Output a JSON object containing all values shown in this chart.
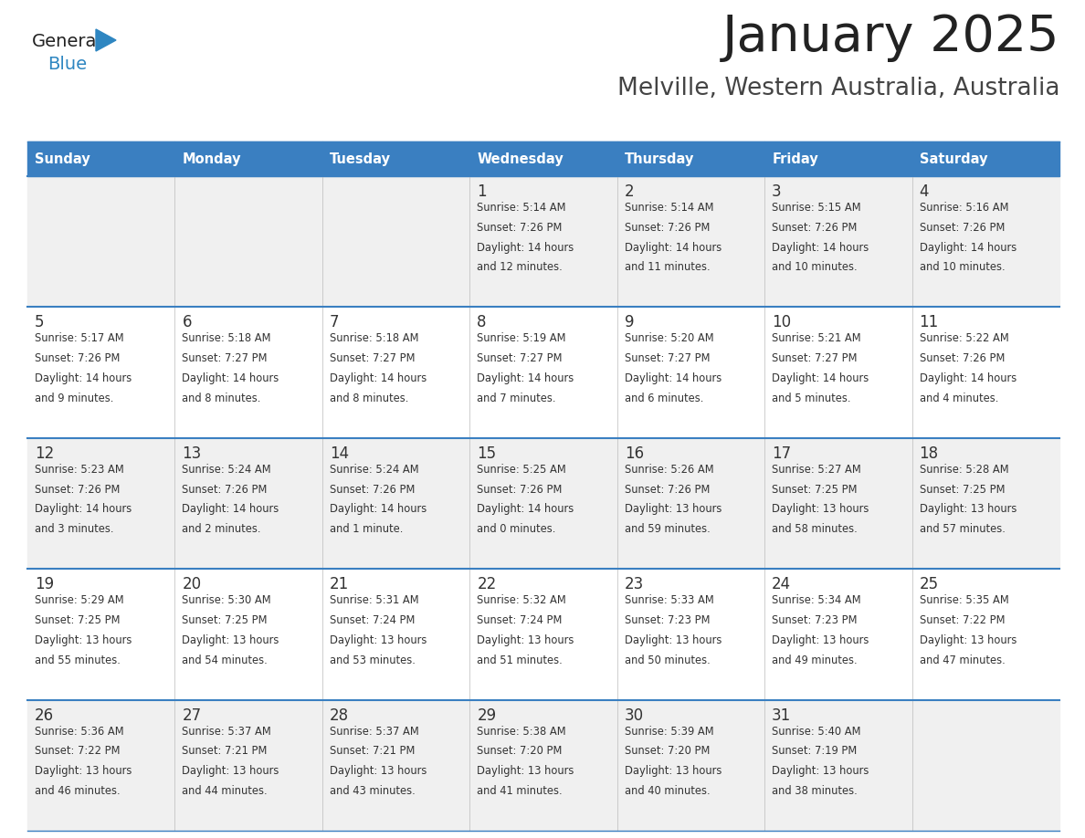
{
  "title": "January 2025",
  "subtitle": "Melville, Western Australia, Australia",
  "header_bg": "#3A7FC1",
  "header_text": "#FFFFFF",
  "row_bg_odd": "#F0F0F0",
  "row_bg_even": "#FFFFFF",
  "border_color": "#3A7FC1",
  "days_of_week": [
    "Sunday",
    "Monday",
    "Tuesday",
    "Wednesday",
    "Thursday",
    "Friday",
    "Saturday"
  ],
  "cell_text_color": "#333333",
  "day_num_color": "#333333",
  "title_color": "#222222",
  "subtitle_color": "#444444",
  "logo_general_color": "#222222",
  "logo_blue_color": "#2E86C1",
  "logo_triangle_color": "#2E86C1",
  "calendar": [
    [
      null,
      null,
      null,
      {
        "day": 1,
        "sunrise": "5:14 AM",
        "sunset": "7:26 PM",
        "daylight": "14 hours and 12 minutes."
      },
      {
        "day": 2,
        "sunrise": "5:14 AM",
        "sunset": "7:26 PM",
        "daylight": "14 hours and 11 minutes."
      },
      {
        "day": 3,
        "sunrise": "5:15 AM",
        "sunset": "7:26 PM",
        "daylight": "14 hours and 10 minutes."
      },
      {
        "day": 4,
        "sunrise": "5:16 AM",
        "sunset": "7:26 PM",
        "daylight": "14 hours and 10 minutes."
      }
    ],
    [
      {
        "day": 5,
        "sunrise": "5:17 AM",
        "sunset": "7:26 PM",
        "daylight": "14 hours and 9 minutes."
      },
      {
        "day": 6,
        "sunrise": "5:18 AM",
        "sunset": "7:27 PM",
        "daylight": "14 hours and 8 minutes."
      },
      {
        "day": 7,
        "sunrise": "5:18 AM",
        "sunset": "7:27 PM",
        "daylight": "14 hours and 8 minutes."
      },
      {
        "day": 8,
        "sunrise": "5:19 AM",
        "sunset": "7:27 PM",
        "daylight": "14 hours and 7 minutes."
      },
      {
        "day": 9,
        "sunrise": "5:20 AM",
        "sunset": "7:27 PM",
        "daylight": "14 hours and 6 minutes."
      },
      {
        "day": 10,
        "sunrise": "5:21 AM",
        "sunset": "7:27 PM",
        "daylight": "14 hours and 5 minutes."
      },
      {
        "day": 11,
        "sunrise": "5:22 AM",
        "sunset": "7:26 PM",
        "daylight": "14 hours and 4 minutes."
      }
    ],
    [
      {
        "day": 12,
        "sunrise": "5:23 AM",
        "sunset": "7:26 PM",
        "daylight": "14 hours and 3 minutes."
      },
      {
        "day": 13,
        "sunrise": "5:24 AM",
        "sunset": "7:26 PM",
        "daylight": "14 hours and 2 minutes."
      },
      {
        "day": 14,
        "sunrise": "5:24 AM",
        "sunset": "7:26 PM",
        "daylight": "14 hours and 1 minute."
      },
      {
        "day": 15,
        "sunrise": "5:25 AM",
        "sunset": "7:26 PM",
        "daylight": "14 hours and 0 minutes."
      },
      {
        "day": 16,
        "sunrise": "5:26 AM",
        "sunset": "7:26 PM",
        "daylight": "13 hours and 59 minutes."
      },
      {
        "day": 17,
        "sunrise": "5:27 AM",
        "sunset": "7:25 PM",
        "daylight": "13 hours and 58 minutes."
      },
      {
        "day": 18,
        "sunrise": "5:28 AM",
        "sunset": "7:25 PM",
        "daylight": "13 hours and 57 minutes."
      }
    ],
    [
      {
        "day": 19,
        "sunrise": "5:29 AM",
        "sunset": "7:25 PM",
        "daylight": "13 hours and 55 minutes."
      },
      {
        "day": 20,
        "sunrise": "5:30 AM",
        "sunset": "7:25 PM",
        "daylight": "13 hours and 54 minutes."
      },
      {
        "day": 21,
        "sunrise": "5:31 AM",
        "sunset": "7:24 PM",
        "daylight": "13 hours and 53 minutes."
      },
      {
        "day": 22,
        "sunrise": "5:32 AM",
        "sunset": "7:24 PM",
        "daylight": "13 hours and 51 minutes."
      },
      {
        "day": 23,
        "sunrise": "5:33 AM",
        "sunset": "7:23 PM",
        "daylight": "13 hours and 50 minutes."
      },
      {
        "day": 24,
        "sunrise": "5:34 AM",
        "sunset": "7:23 PM",
        "daylight": "13 hours and 49 minutes."
      },
      {
        "day": 25,
        "sunrise": "5:35 AM",
        "sunset": "7:22 PM",
        "daylight": "13 hours and 47 minutes."
      }
    ],
    [
      {
        "day": 26,
        "sunrise": "5:36 AM",
        "sunset": "7:22 PM",
        "daylight": "13 hours and 46 minutes."
      },
      {
        "day": 27,
        "sunrise": "5:37 AM",
        "sunset": "7:21 PM",
        "daylight": "13 hours and 44 minutes."
      },
      {
        "day": 28,
        "sunrise": "5:37 AM",
        "sunset": "7:21 PM",
        "daylight": "13 hours and 43 minutes."
      },
      {
        "day": 29,
        "sunrise": "5:38 AM",
        "sunset": "7:20 PM",
        "daylight": "13 hours and 41 minutes."
      },
      {
        "day": 30,
        "sunrise": "5:39 AM",
        "sunset": "7:20 PM",
        "daylight": "13 hours and 40 minutes."
      },
      {
        "day": 31,
        "sunrise": "5:40 AM",
        "sunset": "7:19 PM",
        "daylight": "13 hours and 38 minutes."
      },
      null
    ]
  ]
}
